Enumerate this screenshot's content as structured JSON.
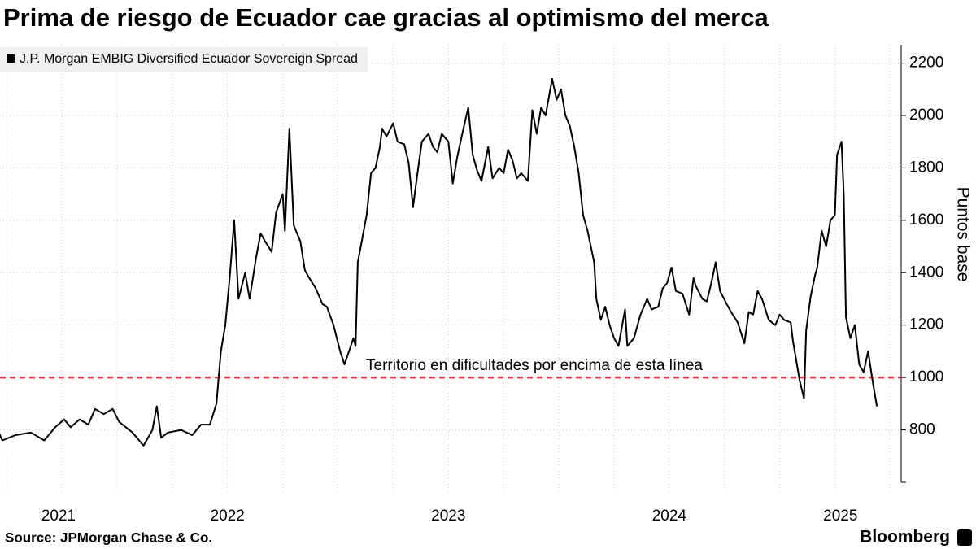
{
  "chart_data": {
    "type": "line",
    "title": "Prima de riesgo de Ecuador cae gracias al optimismo del merca",
    "y_axis_label": "Puntos base",
    "source": "Source: JPMorgan Chase & Co.",
    "brand": "Bloomberg",
    "x": [
      2021.46,
      2021.48,
      2021.54,
      2021.61,
      2021.67,
      2021.72,
      2021.76,
      2021.79,
      2021.83,
      2021.87,
      2021.9,
      2021.94,
      2021.98,
      2022.01,
      2022.07,
      2022.12,
      2022.16,
      2022.18,
      2022.2,
      2022.23,
      2022.29,
      2022.34,
      2022.38,
      2022.42,
      2022.45,
      2022.47,
      2022.49,
      2022.51,
      2022.53,
      2022.55,
      2022.58,
      2022.6,
      2022.63,
      2022.65,
      2022.67,
      2022.7,
      2022.72,
      2022.75,
      2022.76,
      2022.78,
      2022.8,
      2022.83,
      2022.85,
      2022.87,
      2022.9,
      2022.93,
      2022.95,
      2022.98,
      2023.01,
      2023.03,
      2023.05,
      2023.07,
      2023.08,
      2023.09,
      2023.11,
      2023.13,
      2023.15,
      2023.17,
      2023.19,
      2023.2,
      2023.22,
      2023.25,
      2023.27,
      2023.3,
      2023.32,
      2023.34,
      2023.36,
      2023.38,
      2023.41,
      2023.43,
      2023.45,
      2023.47,
      2023.5,
      2023.52,
      2023.54,
      2023.56,
      2023.59,
      2023.61,
      2023.63,
      2023.65,
      2023.68,
      2023.7,
      2023.73,
      2023.75,
      2023.77,
      2023.79,
      2023.81,
      2023.83,
      2023.86,
      2023.88,
      2023.9,
      2023.92,
      2023.94,
      2023.97,
      2023.99,
      2024.01,
      2024.03,
      2024.05,
      2024.07,
      2024.09,
      2024.11,
      2024.13,
      2024.16,
      2024.17,
      2024.19,
      2024.21,
      2024.23,
      2024.25,
      2024.27,
      2024.3,
      2024.31,
      2024.34,
      2024.37,
      2024.4,
      2024.42,
      2024.45,
      2024.47,
      2024.49,
      2024.51,
      2024.53,
      2024.56,
      2024.59,
      2024.61,
      2024.62,
      2024.65,
      2024.67,
      2024.69,
      2024.71,
      2024.73,
      2024.76,
      2024.78,
      2024.81,
      2024.84,
      2024.86,
      2024.88,
      2024.9,
      2024.92,
      2024.95,
      2024.98,
      2025.0,
      2025.02,
      2025.05,
      2025.06,
      2025.09,
      2025.11,
      2025.12,
      2025.14,
      2025.16,
      2025.17,
      2025.19,
      2025.21,
      2025.23,
      2025.25,
      2025.26,
      2025.28,
      2025.29,
      2025.3,
      2025.32,
      2025.34,
      2025.36,
      2025.38,
      2025.4,
      2025.42,
      2025.44
    ],
    "series": [
      {
        "name": "J.P. Morgan EMBIG Diversified Ecuador Sovereign Spread",
        "color": "#000000",
        "values": [
          800,
          760,
          780,
          790,
          760,
          810,
          840,
          810,
          840,
          820,
          880,
          860,
          880,
          830,
          790,
          740,
          800,
          890,
          770,
          790,
          800,
          780,
          820,
          820,
          900,
          1100,
          1200,
          1380,
          1600,
          1300,
          1400,
          1300,
          1460,
          1550,
          1520,
          1480,
          1630,
          1700,
          1560,
          1950,
          1580,
          1520,
          1410,
          1380,
          1340,
          1280,
          1270,
          1200,
          1100,
          1050,
          1100,
          1150,
          1120,
          1440,
          1530,
          1620,
          1780,
          1800,
          1880,
          1950,
          1920,
          1970,
          1900,
          1890,
          1820,
          1650,
          1780,
          1900,
          1930,
          1880,
          1860,
          1930,
          1900,
          1740,
          1840,
          1920,
          2030,
          1850,
          1790,
          1750,
          1880,
          1760,
          1800,
          1780,
          1870,
          1830,
          1760,
          1780,
          1750,
          2020,
          1930,
          2030,
          2000,
          2140,
          2060,
          2100,
          2000,
          1960,
          1880,
          1780,
          1620,
          1560,
          1440,
          1300,
          1220,
          1270,
          1200,
          1150,
          1120,
          1260,
          1120,
          1150,
          1240,
          1300,
          1260,
          1270,
          1340,
          1360,
          1420,
          1330,
          1320,
          1240,
          1380,
          1350,
          1300,
          1290,
          1360,
          1440,
          1330,
          1280,
          1250,
          1210,
          1130,
          1250,
          1240,
          1330,
          1300,
          1220,
          1200,
          1240,
          1220,
          1210,
          1140,
          990,
          920,
          1180,
          1310,
          1390,
          1420,
          1560,
          1500,
          1600,
          1620,
          1850,
          1900,
          1700,
          1230,
          1150,
          1200,
          1050,
          1020,
          1100,
          990,
          890
        ]
      }
    ],
    "xlim": [
      2021.47,
      2025.55
    ],
    "xticks": [
      2021,
      2022,
      2023,
      2024,
      2025
    ],
    "xminorticks": [
      2021.5,
      2021.75,
      2022.25,
      2022.5,
      2022.75,
      2023.25,
      2023.5,
      2023.75,
      2024.25,
      2024.5,
      2024.75,
      2025.25,
      2025.5
    ],
    "ylim": [
      600,
      2270
    ],
    "yticks": [
      800,
      1000,
      1200,
      1400,
      1600,
      1800,
      2000,
      2200
    ],
    "grid": true,
    "threshold": {
      "value": 1000,
      "color": "#e8334a",
      "label": "Territorio en dificultades por encima de esta línea",
      "label_color": "#f5a623"
    },
    "legend": "top-left"
  }
}
